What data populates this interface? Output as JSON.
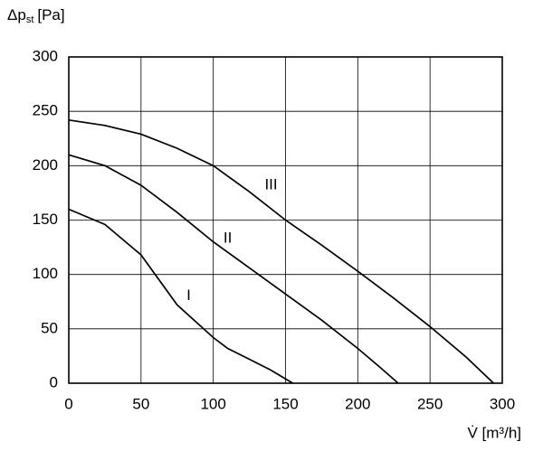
{
  "chart_data": {
    "type": "line",
    "y_label": "Δp",
    "y_label_sub": "st",
    "y_label_unit": "[Pa]",
    "x_label": "V̇ [m³/h]",
    "xlim": [
      0,
      300
    ],
    "ylim": [
      0,
      300
    ],
    "xticks": [
      0,
      50,
      100,
      150,
      200,
      250,
      300
    ],
    "yticks": [
      0,
      50,
      100,
      150,
      200,
      250,
      300
    ],
    "grid": true,
    "series": [
      {
        "name": "I",
        "color": "#000000",
        "x": [
          0,
          25,
          50,
          75,
          100,
          110,
          125,
          140,
          155
        ],
        "values": [
          160,
          146,
          118,
          72,
          42,
          32,
          22,
          12,
          0
        ]
      },
      {
        "name": "II",
        "color": "#000000",
        "x": [
          0,
          25,
          50,
          75,
          100,
          125,
          150,
          175,
          200,
          215,
          228
        ],
        "values": [
          210,
          200,
          182,
          157,
          130,
          106,
          82,
          58,
          32,
          15,
          0
        ]
      },
      {
        "name": "III",
        "color": "#000000",
        "x": [
          0,
          25,
          50,
          75,
          100,
          125,
          150,
          175,
          200,
          225,
          250,
          275,
          294
        ],
        "values": [
          242,
          237,
          229,
          216,
          200,
          176,
          150,
          127,
          103,
          78,
          52,
          24,
          0
        ]
      }
    ]
  }
}
